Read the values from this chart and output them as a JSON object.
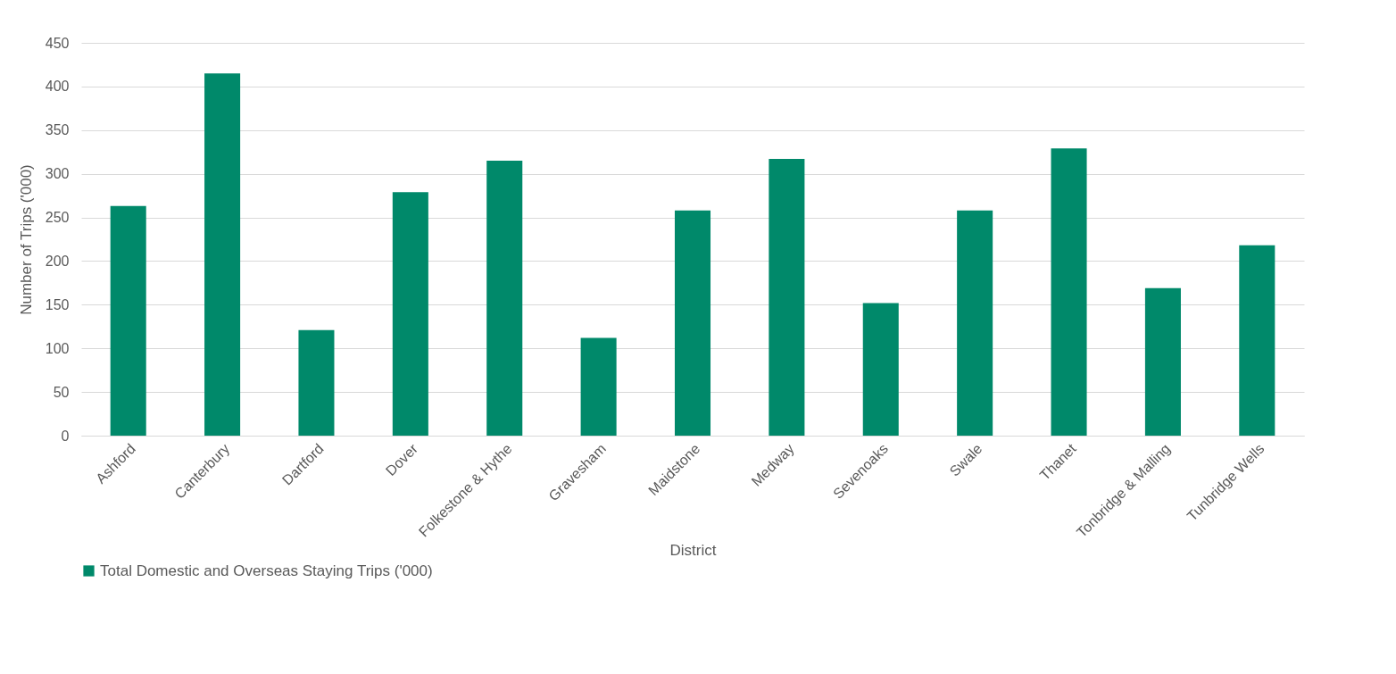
{
  "chart_data": {
    "type": "bar",
    "xlabel": "District",
    "ylabel": "Number of Trips ('000)",
    "categories": [
      "Ashford",
      "Canterbury",
      "Dartford",
      "Dover",
      "Folkestone & Hythe",
      "Gravesham",
      "Maidstone",
      "Medway",
      "Sevenoaks",
      "Swale",
      "Thanet",
      "Tonbridge & Malling",
      "Tunbridge Wells"
    ],
    "series": [
      {
        "name": "Total Domestic and Overseas Staying Trips ('000)",
        "color": "#00896a",
        "values": [
          263,
          415,
          121,
          279,
          315,
          112,
          258,
          317,
          152,
          258,
          329,
          169,
          218
        ]
      }
    ],
    "ylim": [
      0,
      450
    ],
    "yticks": [
      0,
      50,
      100,
      150,
      200,
      250,
      300,
      350,
      400,
      450
    ],
    "grid": "y",
    "legend": "bottom"
  }
}
